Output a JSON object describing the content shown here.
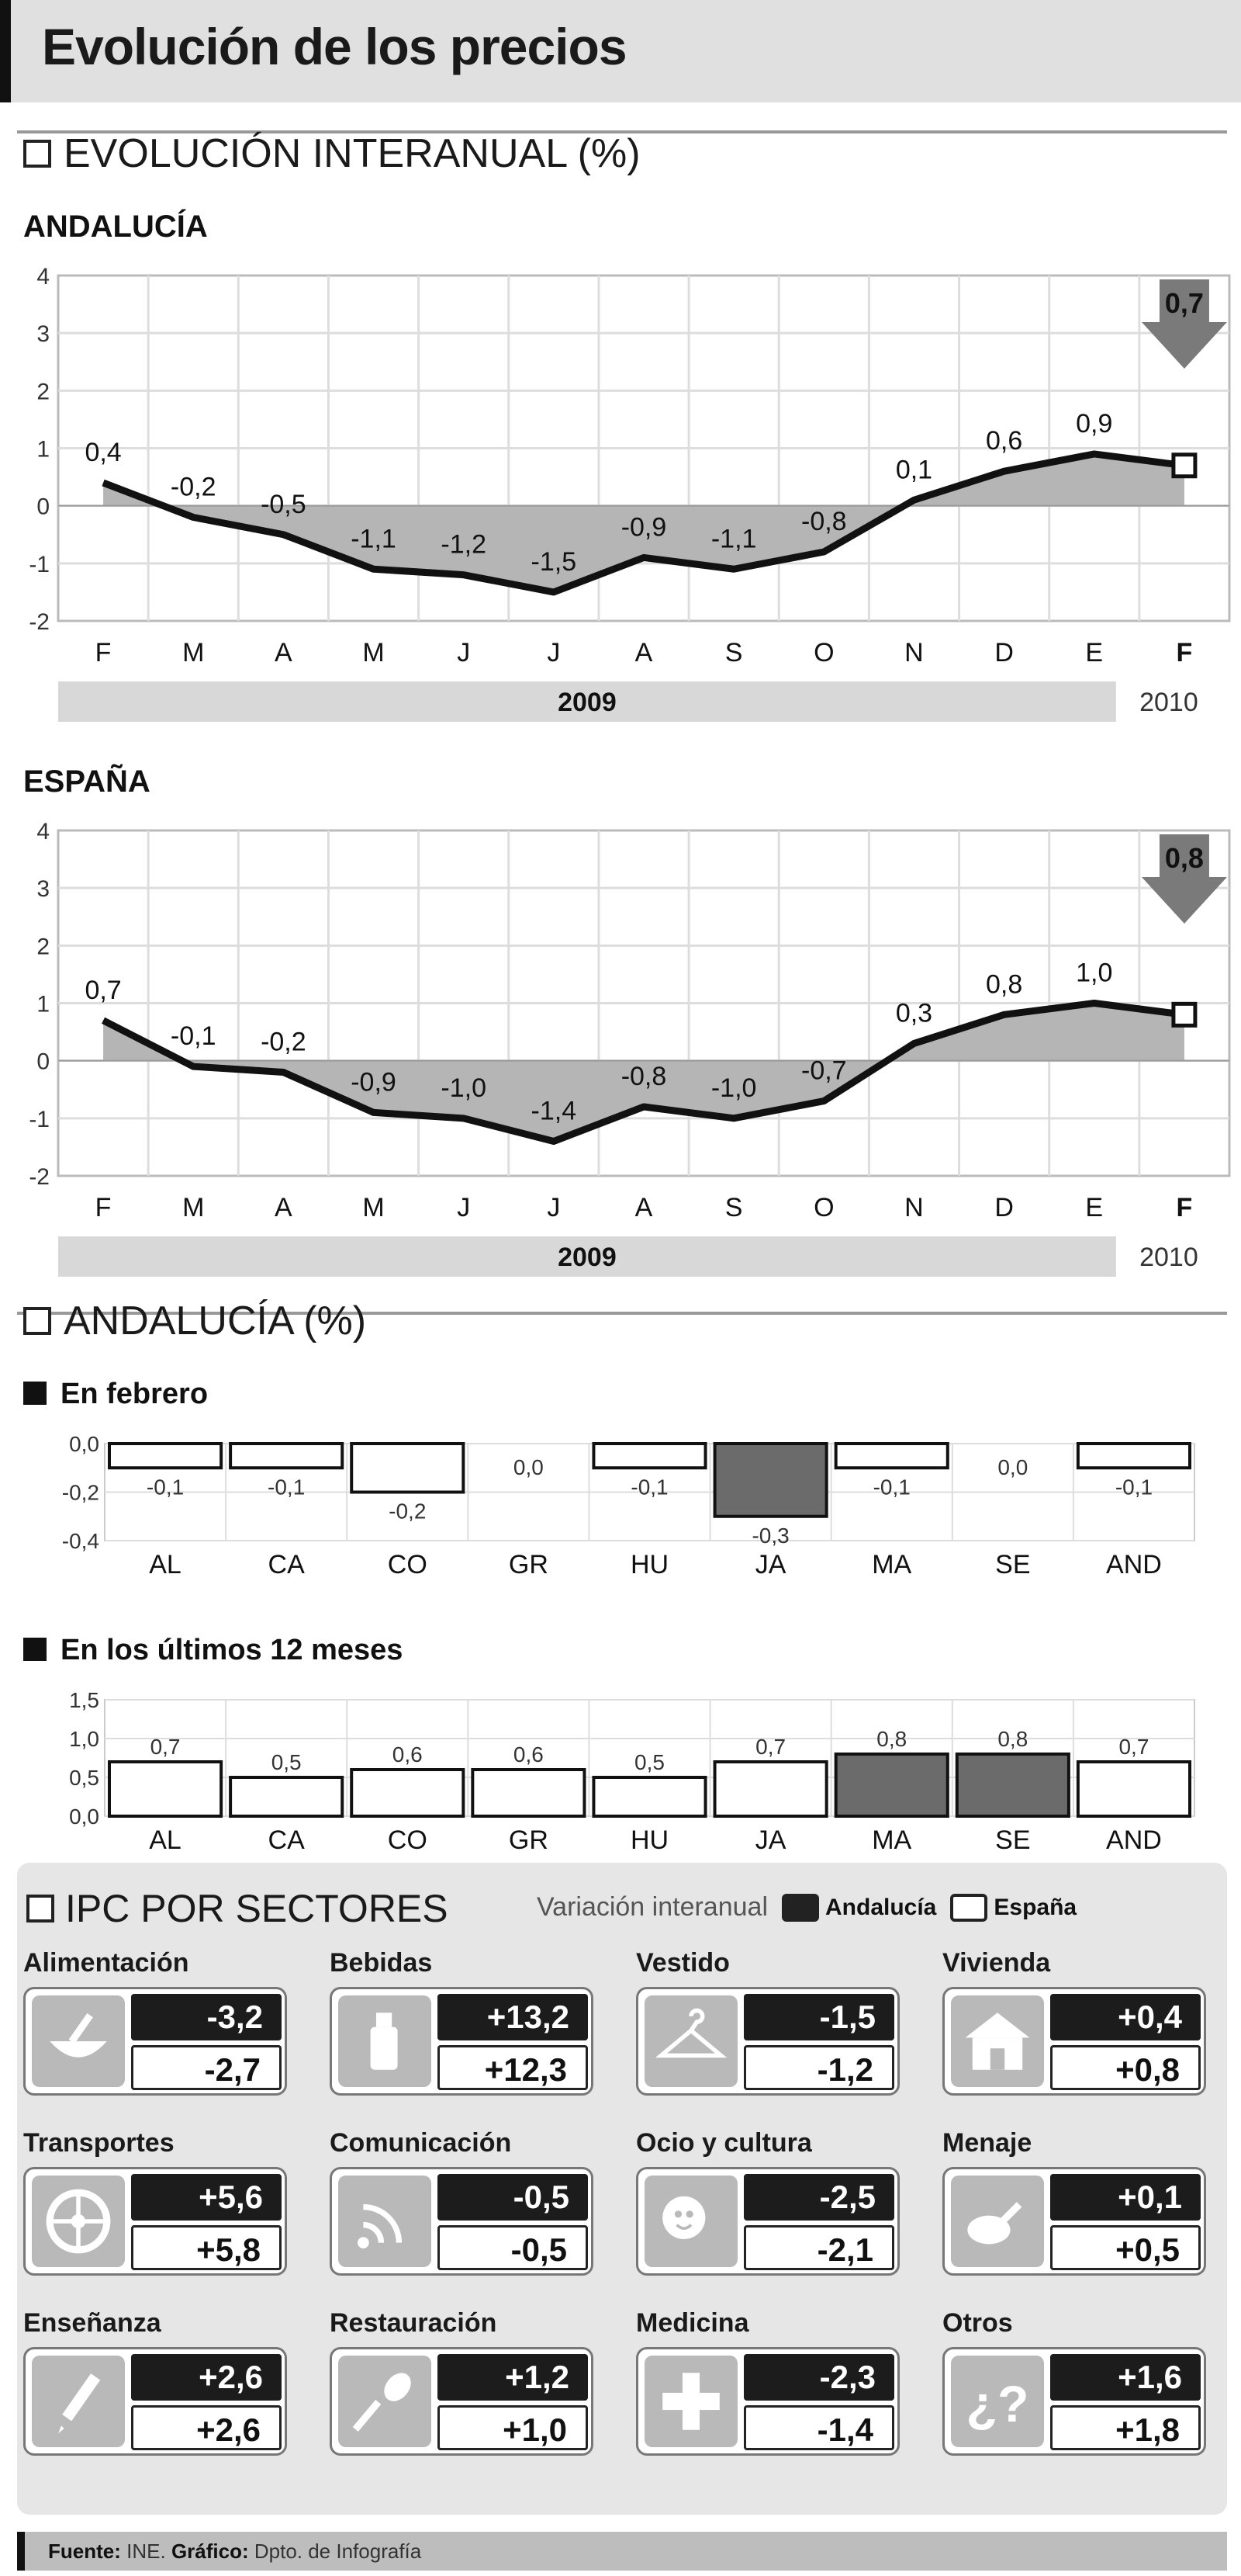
{
  "title": "Evolución de los precios",
  "section1": {
    "label": "EVOLUCIÓN INTERANUAL (%)"
  },
  "section2": {
    "label": "ANDALUCÍA (%)"
  },
  "chart_data": [
    {
      "type": "area",
      "title": "ANDALUCÍA",
      "categories": [
        "F",
        "M",
        "A",
        "M",
        "J",
        "J",
        "A",
        "S",
        "O",
        "N",
        "D",
        "E",
        "F"
      ],
      "values": [
        0.4,
        -0.2,
        -0.5,
        -1.1,
        -1.2,
        -1.5,
        -0.9,
        -1.1,
        -0.8,
        0.1,
        0.6,
        0.9,
        0.7
      ],
      "value_labels": [
        "0,4",
        "-0,2",
        "-0,5",
        "-1,1",
        "-1,2",
        "-1,5",
        "-0,9",
        "-1,1",
        "-0,8",
        "0,1",
        "0,6",
        "0,9",
        "0,7"
      ],
      "yticks": [
        "4",
        "3",
        "2",
        "1",
        "0",
        "-1",
        "-2"
      ],
      "ylim": [
        -2,
        4
      ],
      "years": [
        "2009",
        "2010"
      ],
      "highlight_last": true
    },
    {
      "type": "area",
      "title": "ESPAÑA",
      "categories": [
        "F",
        "M",
        "A",
        "M",
        "J",
        "J",
        "A",
        "S",
        "O",
        "N",
        "D",
        "E",
        "F"
      ],
      "values": [
        0.7,
        -0.1,
        -0.2,
        -0.9,
        -1.0,
        -1.4,
        -0.8,
        -1.0,
        -0.7,
        0.3,
        0.8,
        1.0,
        0.8
      ],
      "value_labels": [
        "0,7",
        "-0,1",
        "-0,2",
        "-0,9",
        "-1,0",
        "-1,4",
        "-0,8",
        "-1,0",
        "-0,7",
        "0,3",
        "0,8",
        "1,0",
        "0,8"
      ],
      "yticks": [
        "4",
        "3",
        "2",
        "1",
        "0",
        "-1",
        "-2"
      ],
      "ylim": [
        -2,
        4
      ],
      "years": [
        "2009",
        "2010"
      ],
      "highlight_last": true
    },
    {
      "type": "bar",
      "title": "En febrero",
      "categories": [
        "AL",
        "CA",
        "CO",
        "GR",
        "HU",
        "JA",
        "MA",
        "SE",
        "AND"
      ],
      "values": [
        -0.1,
        -0.1,
        -0.2,
        0.0,
        -0.1,
        -0.3,
        -0.1,
        0.0,
        -0.1
      ],
      "value_labels": [
        "-0,1",
        "-0,1",
        "-0,2",
        "0,0",
        "-0,1",
        "-0,3",
        "-0,1",
        "0,0",
        "-0,1"
      ],
      "highlight": [
        false,
        false,
        false,
        false,
        false,
        true,
        false,
        false,
        false
      ],
      "yticks": [
        "0,0",
        "-0,2",
        "-0,4"
      ],
      "ylim": [
        -0.4,
        0.0
      ]
    },
    {
      "type": "bar",
      "title": "En los últimos 12 meses",
      "categories": [
        "AL",
        "CA",
        "CO",
        "GR",
        "HU",
        "JA",
        "MA",
        "SE",
        "AND"
      ],
      "values": [
        0.7,
        0.5,
        0.6,
        0.6,
        0.5,
        0.7,
        0.8,
        0.8,
        0.7
      ],
      "value_labels": [
        "0,7",
        "0,5",
        "0,6",
        "0,6",
        "0,5",
        "0,7",
        "0,8",
        "0,8",
        "0,7"
      ],
      "highlight": [
        false,
        false,
        false,
        false,
        false,
        false,
        true,
        true,
        false
      ],
      "yticks": [
        "1,5",
        "1,0",
        "0,5",
        "0,0"
      ],
      "ylim": [
        0.0,
        1.5
      ]
    }
  ],
  "sectors": {
    "title": "IPC POR SECTORES",
    "legend": {
      "caption": "Variación interanual",
      "and": "Andalucía",
      "esp": "España"
    },
    "colors": {
      "andalucia": "#1c1c1c",
      "espana": "#ffffff",
      "highlight": "#6b6b6b",
      "area": "#b5b5b5"
    },
    "items": [
      {
        "name": "Alimentación",
        "icon": "mortar-icon",
        "and": "-3,2",
        "esp": "-2,7"
      },
      {
        "name": "Bebidas",
        "icon": "bottle-icon",
        "and": "+13,2",
        "esp": "+12,3"
      },
      {
        "name": "Vestido",
        "icon": "hanger-icon",
        "and": "-1,5",
        "esp": "-1,2"
      },
      {
        "name": "Vivienda",
        "icon": "house-icon",
        "and": "+0,4",
        "esp": "+0,8"
      },
      {
        "name": "Transportes",
        "icon": "wheel-icon",
        "and": "+5,6",
        "esp": "+5,8"
      },
      {
        "name": "Comunicación",
        "icon": "signal-icon",
        "and": "-0,5",
        "esp": "-0,5"
      },
      {
        "name": "Ocio y cultura",
        "icon": "theater-icon",
        "and": "-2,5",
        "esp": "-2,1"
      },
      {
        "name": "Menaje",
        "icon": "pan-icon",
        "and": "+0,1",
        "esp": "+0,5"
      },
      {
        "name": "Enseñanza",
        "icon": "pencil-icon",
        "and": "+2,6",
        "esp": "+2,6"
      },
      {
        "name": "Restauración",
        "icon": "spoon-icon",
        "and": "+1,2",
        "esp": "+1,0"
      },
      {
        "name": "Medicina",
        "icon": "cross-icon",
        "and": "-2,3",
        "esp": "-1,4"
      },
      {
        "name": "Otros",
        "icon": "question-icon",
        "and": "+1,6",
        "esp": "+1,8"
      }
    ]
  },
  "footer": {
    "source_label": "Fuente:",
    "source": "INE.",
    "graphic_label": "Gráfico:",
    "graphic": "Dpto. de Infografía"
  }
}
